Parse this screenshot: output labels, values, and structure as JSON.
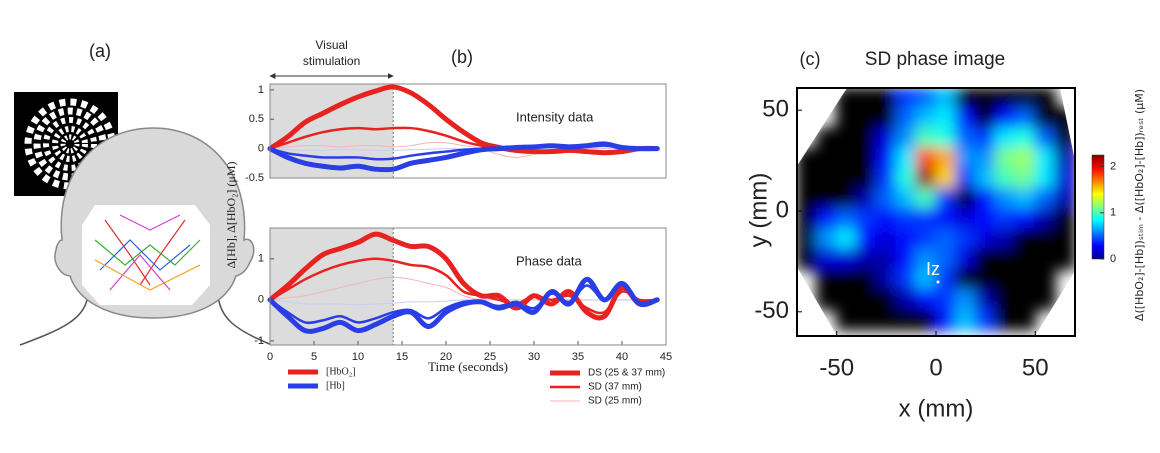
{
  "panel_a": {
    "label": "(a)"
  },
  "shared": {
    "ylabel": "Δ[Hb], Δ[HbO₂]  (μM)",
    "legend_color": [
      {
        "name": "[HbO₂]",
        "color": "#e8221f"
      },
      {
        "name": "[Hb]",
        "color": "#2a3ee6"
      }
    ],
    "legend_width": [
      {
        "name": "DS (25 & 37 mm)",
        "width": 5,
        "color": "#e8221f"
      },
      {
        "name": "SD (37 mm)",
        "width": 2.5,
        "color": "#e8221f"
      },
      {
        "name": "SD (25 mm)",
        "width": 1,
        "color": "#f4b4b4"
      }
    ]
  },
  "chart_data": [
    {
      "type": "line",
      "panel_label": "(b)",
      "title": "Intensity data",
      "shade": [
        0,
        14
      ],
      "shade_label": [
        "Visual",
        "stimulation"
      ],
      "x": [
        0,
        2,
        4,
        6,
        8,
        10,
        12,
        14,
        16,
        18,
        20,
        22,
        24,
        26,
        28,
        30,
        32,
        34,
        36,
        38,
        40,
        42,
        44
      ],
      "xlim": [
        0,
        45
      ],
      "ylim": [
        -0.5,
        1.1
      ],
      "yticks": [
        -0.5,
        0,
        0.5,
        1
      ],
      "series": [
        {
          "color": "#f4b4b4",
          "width": 1,
          "values": [
            0,
            0.03,
            0.05,
            0.05,
            0.03,
            0.05,
            0.05,
            0.03,
            0.05,
            0.1,
            0.1,
            0.05,
            0,
            -0.1,
            -0.15,
            -0.1,
            -0.05,
            0,
            0,
            0,
            0,
            0,
            0
          ]
        },
        {
          "color": "#c8ccf4",
          "width": 1,
          "values": [
            0,
            -0.02,
            -0.03,
            -0.03,
            -0.02,
            -0.02,
            -0.03,
            -0.03,
            -0.02,
            -0.01,
            0,
            0,
            0,
            0.01,
            0.01,
            0.01,
            0.01,
            0.01,
            0.01,
            0.01,
            0,
            0,
            0
          ]
        },
        {
          "color": "#e8221f",
          "width": 2.5,
          "values": [
            0,
            0.1,
            0.2,
            0.28,
            0.33,
            0.35,
            0.33,
            0.35,
            0.35,
            0.3,
            0.22,
            0.12,
            0.05,
            0,
            -0.05,
            -0.05,
            -0.03,
            -0.03,
            -0.05,
            -0.05,
            -0.03,
            0,
            0
          ]
        },
        {
          "color": "#2a3ee6",
          "width": 2.5,
          "values": [
            0,
            -0.08,
            -0.12,
            -0.15,
            -0.15,
            -0.15,
            -0.18,
            -0.17,
            -0.12,
            -0.08,
            -0.05,
            -0.02,
            0,
            0.02,
            0.03,
            0.02,
            0.03,
            0.02,
            0.03,
            0.05,
            0.02,
            0,
            0
          ]
        },
        {
          "color": "#e8221f",
          "width": 5,
          "values": [
            0,
            0.2,
            0.45,
            0.6,
            0.75,
            0.88,
            0.98,
            1.05,
            0.95,
            0.75,
            0.5,
            0.28,
            0.1,
            0.02,
            -0.03,
            -0.05,
            -0.05,
            -0.03,
            -0.05,
            -0.07,
            -0.05,
            0,
            0
          ]
        },
        {
          "color": "#2a3ee6",
          "width": 5,
          "values": [
            0,
            -0.15,
            -0.25,
            -0.3,
            -0.33,
            -0.3,
            -0.35,
            -0.35,
            -0.25,
            -0.2,
            -0.15,
            -0.08,
            -0.02,
            0,
            0.02,
            0.03,
            0.05,
            0.03,
            0.05,
            0.08,
            0.02,
            0,
            0
          ]
        }
      ]
    },
    {
      "type": "line",
      "title": "Phase data",
      "shade": [
        0,
        14
      ],
      "xlabel": "Time (seconds)",
      "x": [
        0,
        2,
        4,
        6,
        8,
        10,
        12,
        14,
        16,
        18,
        20,
        22,
        24,
        26,
        28,
        30,
        32,
        34,
        36,
        38,
        40,
        42,
        44
      ],
      "xlim": [
        0,
        45
      ],
      "xticks": [
        0,
        5,
        10,
        15,
        20,
        25,
        30,
        35,
        40,
        45
      ],
      "ylim": [
        -1.1,
        1.75
      ],
      "yticks": [
        -1,
        0,
        1
      ],
      "series": [
        {
          "color": "#f4b4b4",
          "width": 1,
          "values": [
            0,
            0.05,
            0.1,
            0.2,
            0.3,
            0.4,
            0.5,
            0.55,
            0.5,
            0.4,
            0.3,
            0.1,
            0,
            0,
            0,
            0,
            0,
            0,
            0,
            0,
            0,
            0,
            0
          ]
        },
        {
          "color": "#c8ccf4",
          "width": 1,
          "values": [
            0,
            -0.05,
            -0.1,
            -0.1,
            -0.1,
            -0.12,
            -0.1,
            -0.08,
            -0.05,
            -0.05,
            -0.03,
            0,
            0,
            0,
            0,
            0,
            0,
            0,
            0,
            0,
            0,
            0,
            0
          ]
        },
        {
          "color": "#e8221f",
          "width": 2.5,
          "values": [
            0,
            0.25,
            0.5,
            0.7,
            0.85,
            0.95,
            1.0,
            0.95,
            0.85,
            0.8,
            0.6,
            0.2,
            0.1,
            0,
            -0.1,
            0.1,
            0,
            0.1,
            -0.2,
            -0.3,
            0.2,
            0,
            0
          ]
        },
        {
          "color": "#2a3ee6",
          "width": 2.5,
          "values": [
            0,
            -0.3,
            -0.55,
            -0.5,
            -0.4,
            -0.55,
            -0.45,
            -0.3,
            -0.25,
            -0.45,
            -0.2,
            -0.05,
            -0.05,
            -0.15,
            -0.05,
            -0.2,
            0.15,
            -0.05,
            0.35,
            0,
            0.3,
            -0.05,
            0
          ]
        },
        {
          "color": "#e8221f",
          "width": 5,
          "values": [
            0,
            0.35,
            0.75,
            1.1,
            1.25,
            1.4,
            1.6,
            1.45,
            1.3,
            1.3,
            1.0,
            0.4,
            0.1,
            0.1,
            -0.2,
            0.1,
            -0.1,
            0.2,
            -0.3,
            -0.4,
            0.3,
            -0.1,
            0
          ]
        },
        {
          "color": "#2a3ee6",
          "width": 5,
          "values": [
            0,
            -0.4,
            -0.75,
            -0.7,
            -0.55,
            -0.75,
            -0.6,
            -0.4,
            -0.3,
            -0.65,
            -0.3,
            -0.1,
            -0.05,
            -0.2,
            -0.1,
            -0.3,
            0.2,
            -0.1,
            0.5,
            0,
            0.4,
            -0.1,
            0
          ]
        }
      ]
    },
    {
      "type": "heatmap",
      "panel_label": "(c)",
      "title": "SD phase image",
      "xlabel": "x (mm)",
      "ylabel": "y (mm)",
      "annotation": "Iz",
      "xlim": [
        -70,
        70
      ],
      "ylim": [
        -62,
        61
      ],
      "xticks": [
        -50,
        0,
        50
      ],
      "yticks": [
        -50,
        0,
        50
      ],
      "x": [
        -65,
        -55,
        -45,
        -35,
        -25,
        -15,
        -5,
        5,
        15,
        25,
        35,
        45,
        55,
        65
      ],
      "y": [
        56,
        46,
        36,
        26,
        16,
        6,
        -4,
        -14,
        -24,
        -34,
        -44,
        -54
      ],
      "clim": [
        0,
        2.25
      ],
      "cticks": [
        0,
        1,
        2
      ],
      "colorbar_label": "Δ([HbO₂]-[Hb])ₛₜᵢₘ - Δ([HbO₂]-[Hb])ᵣₑₛₜ  (μM)",
      "values": [
        [
          null,
          null,
          0,
          0,
          0,
          0.4,
          0.5,
          0.7,
          0,
          0,
          0,
          0,
          0,
          null
        ],
        [
          null,
          null,
          0,
          0,
          0,
          0.5,
          0.7,
          0.8,
          0.3,
          0,
          0.3,
          0.5,
          0,
          0
        ],
        [
          null,
          0,
          0,
          0,
          0.2,
          0.6,
          1.0,
          0.9,
          0.5,
          0.4,
          0.8,
          0.9,
          0.5,
          0
        ],
        [
          0,
          0,
          0,
          0,
          0.3,
          0.8,
          1.8,
          1.6,
          0.6,
          0.6,
          1.1,
          1.2,
          0.8,
          0.1
        ],
        [
          0,
          0,
          0,
          0,
          0.4,
          0.9,
          2.2,
          1.5,
          0.4,
          0.7,
          1.0,
          1.1,
          0.8,
          0.2
        ],
        [
          0,
          0,
          0,
          0.1,
          0.5,
          0.7,
          1.0,
          0.4,
          0,
          0.3,
          0.6,
          0.7,
          0.5,
          0.1
        ],
        [
          0,
          0.3,
          0.5,
          0.4,
          0.3,
          0.4,
          0.4,
          0.3,
          0.2,
          0.3,
          0.4,
          0.3,
          0.1,
          0
        ],
        [
          0,
          0.6,
          0.8,
          0.3,
          0.2,
          0.3,
          0.4,
          0.5,
          0.4,
          0.2,
          0.1,
          0,
          0,
          0
        ],
        [
          0,
          0.2,
          0.2,
          0.1,
          0.1,
          0.3,
          0.6,
          0.5,
          0.2,
          0,
          0,
          0,
          0,
          0
        ],
        [
          null,
          0,
          0,
          0,
          0.1,
          0.4,
          0.7,
          0.4,
          0,
          0,
          0,
          0,
          0,
          null
        ],
        [
          null,
          0,
          0,
          0,
          0,
          0.1,
          0.3,
          0.4,
          0.6,
          0.1,
          0,
          0,
          0,
          null
        ],
        [
          null,
          null,
          0,
          0,
          0,
          0,
          0,
          0.3,
          0.7,
          0.4,
          0,
          0,
          null,
          null
        ]
      ]
    }
  ]
}
